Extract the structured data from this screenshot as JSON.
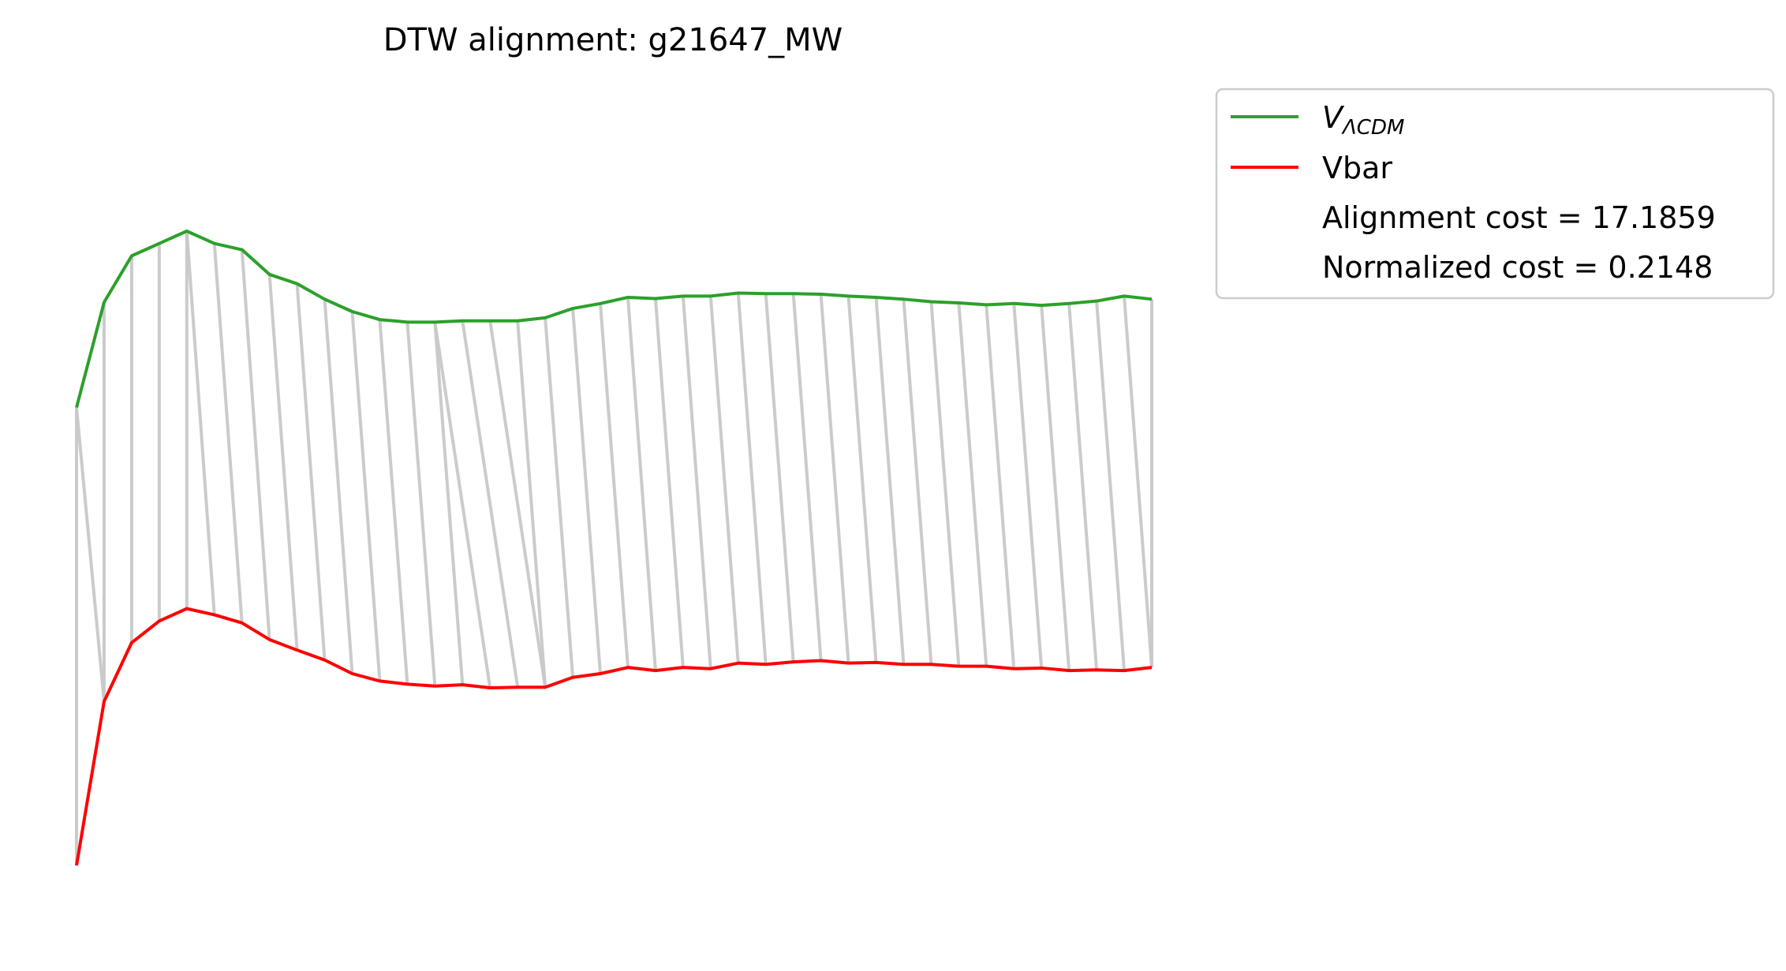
{
  "chart_data": {
    "type": "line",
    "title": "DTW alignment: g21647_MW",
    "xlabel": "",
    "ylabel": "",
    "axes_visible": false,
    "grid": false,
    "legend_placement": "outside-top-right",
    "x": [
      0,
      1,
      2,
      3,
      4,
      5,
      6,
      7,
      8,
      9,
      10,
      11,
      12,
      13,
      14,
      15,
      16,
      17,
      18,
      19,
      20,
      21,
      22,
      23,
      24,
      25,
      26,
      27,
      28,
      29,
      30,
      31,
      32,
      33,
      34,
      35,
      36,
      37,
      38,
      39
    ],
    "ylim": [
      -2,
      11
    ],
    "series": [
      {
        "name": "V_ΛCDM",
        "color": "#2ca02c",
        "values": [
          6.2,
          7.9,
          8.65,
          8.85,
          9.05,
          8.85,
          8.75,
          8.35,
          8.2,
          7.95,
          7.75,
          7.62,
          7.58,
          7.58,
          7.6,
          7.6,
          7.6,
          7.65,
          7.8,
          7.88,
          7.98,
          7.96,
          8.0,
          8.0,
          8.05,
          8.04,
          8.04,
          8.03,
          8.0,
          7.98,
          7.95,
          7.91,
          7.89,
          7.86,
          7.88,
          7.85,
          7.88,
          7.92,
          8.0,
          7.95
        ]
      },
      {
        "name": "Vbar",
        "color": "#ff0000",
        "values": [
          -1.2,
          1.45,
          2.4,
          2.75,
          2.95,
          2.85,
          2.72,
          2.45,
          2.28,
          2.12,
          1.9,
          1.78,
          1.73,
          1.7,
          1.72,
          1.67,
          1.68,
          1.68,
          1.84,
          1.9,
          2.0,
          1.95,
          2.0,
          1.98,
          2.07,
          2.05,
          2.09,
          2.11,
          2.07,
          2.08,
          2.05,
          2.05,
          2.02,
          2.02,
          1.98,
          1.99,
          1.95,
          1.96,
          1.95,
          2.0
        ]
      }
    ],
    "alignment_color": "#c8c8c8",
    "alignment_path": [
      [
        0,
        0
      ],
      [
        0,
        1
      ],
      [
        1,
        1
      ],
      [
        2,
        2
      ],
      [
        3,
        3
      ],
      [
        4,
        4
      ],
      [
        4,
        5
      ],
      [
        5,
        6
      ],
      [
        6,
        7
      ],
      [
        7,
        8
      ],
      [
        8,
        9
      ],
      [
        9,
        10
      ],
      [
        10,
        11
      ],
      [
        11,
        12
      ],
      [
        12,
        13
      ],
      [
        13,
        14
      ],
      [
        13,
        15
      ],
      [
        14,
        16
      ],
      [
        15,
        17
      ],
      [
        16,
        17
      ],
      [
        17,
        18
      ],
      [
        18,
        19
      ],
      [
        19,
        20
      ],
      [
        20,
        21
      ],
      [
        21,
        22
      ],
      [
        22,
        23
      ],
      [
        23,
        24
      ],
      [
        24,
        25
      ],
      [
        25,
        26
      ],
      [
        26,
        27
      ],
      [
        27,
        28
      ],
      [
        28,
        29
      ],
      [
        29,
        30
      ],
      [
        30,
        31
      ],
      [
        31,
        32
      ],
      [
        32,
        33
      ],
      [
        33,
        34
      ],
      [
        34,
        35
      ],
      [
        35,
        36
      ],
      [
        36,
        37
      ],
      [
        37,
        38
      ],
      [
        38,
        39
      ],
      [
        39,
        39
      ]
    ],
    "legend": {
      "entries": [
        "V_ΛCDM",
        "Vbar"
      ],
      "alignment_cost": "Alignment cost = 17.1859",
      "normalized_cost": "Normalized cost = 0.2148"
    }
  }
}
